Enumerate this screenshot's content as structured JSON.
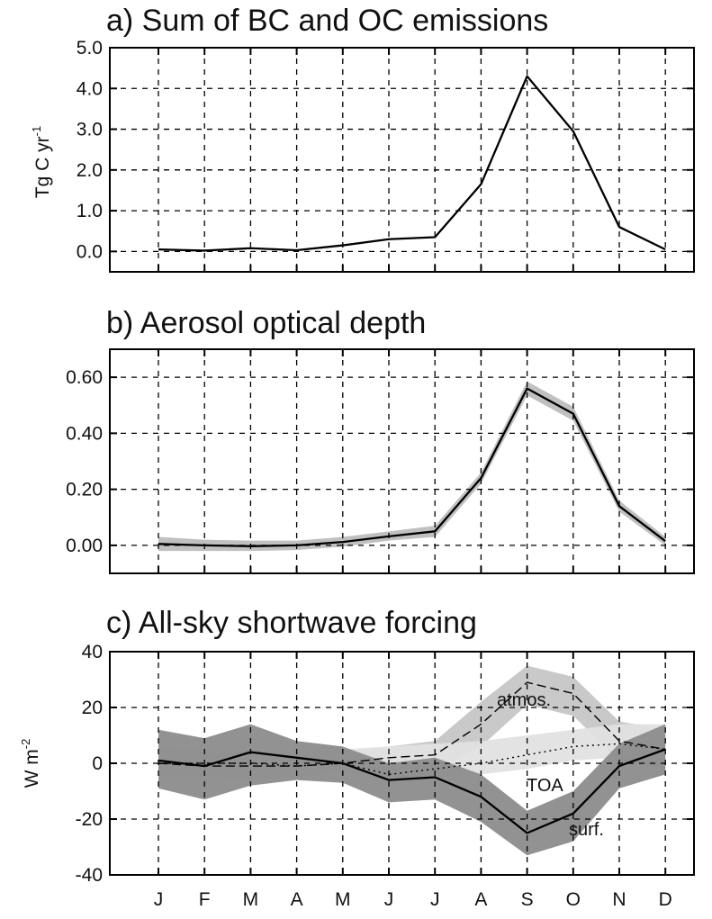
{
  "chart_data": [
    {
      "id": "a",
      "type": "line",
      "title": "a) Sum of BC and OC emissions",
      "ylabel": "Tg C yr",
      "ylabel_sup": "-1",
      "ylim": [
        -0.5,
        5.0
      ],
      "yticks": [
        0.0,
        1.0,
        2.0,
        3.0,
        4.0,
        5.0
      ],
      "ytick_labels": [
        "0.0",
        "1.0",
        "2.0",
        "3.0",
        "4.0",
        "5.0"
      ],
      "categories": [
        "J",
        "F",
        "M",
        "A",
        "M",
        "J",
        "J",
        "A",
        "S",
        "O",
        "N",
        "D"
      ],
      "series": [
        {
          "values": [
            0.05,
            0.02,
            0.08,
            0.03,
            0.15,
            0.3,
            0.35,
            1.65,
            4.3,
            2.95,
            0.6,
            0.05
          ]
        }
      ],
      "grid": true
    },
    {
      "id": "b",
      "type": "line",
      "title": "b) Aerosol optical depth",
      "ylabel": "",
      "ylim": [
        -0.1,
        0.7
      ],
      "yticks": [
        0.0,
        0.2,
        0.4,
        0.6
      ],
      "ytick_labels": [
        "0.00",
        "0.20",
        "0.40",
        "0.60"
      ],
      "categories": [
        "J",
        "F",
        "M",
        "A",
        "M",
        "J",
        "J",
        "A",
        "S",
        "O",
        "N",
        "D"
      ],
      "series": [
        {
          "values": [
            0.005,
            0.0,
            -0.003,
            0.0,
            0.012,
            0.032,
            0.05,
            0.24,
            0.56,
            0.47,
            0.14,
            0.015
          ],
          "band_low": [
            -0.02,
            -0.02,
            -0.02,
            -0.017,
            -0.005,
            0.017,
            0.03,
            0.22,
            0.535,
            0.445,
            0.12,
            0.0
          ],
          "band_high": [
            0.03,
            0.02,
            0.017,
            0.017,
            0.03,
            0.05,
            0.07,
            0.26,
            0.585,
            0.495,
            0.16,
            0.03
          ]
        }
      ],
      "grid": true
    },
    {
      "id": "c",
      "type": "line",
      "title": "c) All-sky shortwave forcing",
      "ylabel": "W m",
      "ylabel_sup": "-2",
      "ylim": [
        -40,
        40
      ],
      "yticks": [
        -40,
        -20,
        0,
        20,
        40
      ],
      "ytick_labels": [
        "-40",
        "-20",
        "0",
        "20",
        "40"
      ],
      "categories": [
        "J",
        "F",
        "M",
        "A",
        "M",
        "J",
        "J",
        "A",
        "S",
        "O",
        "N",
        "D"
      ],
      "series": [
        {
          "name": "atmos.",
          "values": [
            0,
            -1,
            -1,
            -1,
            0,
            2,
            3,
            14,
            29,
            25,
            8,
            5
          ],
          "band_low": [
            -3,
            -5,
            -5,
            -4,
            -3,
            -2,
            -2,
            6,
            21,
            17,
            1,
            -2
          ],
          "band_high": [
            6,
            5,
            4,
            3,
            4,
            6,
            8,
            22,
            35,
            31,
            15,
            12
          ],
          "band_color": "#c6c6c6",
          "line_style": "dash"
        },
        {
          "name": "TOA",
          "values": [
            0,
            0,
            0,
            -1,
            0,
            -4,
            -2,
            0,
            3,
            6,
            7,
            5
          ],
          "band_low": [
            -5,
            -5,
            -6,
            -5,
            -3,
            -6,
            -5,
            -4,
            -2,
            1,
            2,
            0
          ],
          "band_high": [
            6,
            5,
            5,
            4,
            5,
            6,
            7,
            8,
            10,
            12,
            14,
            14
          ],
          "band_color": "#e2e2e2",
          "line_style": "dot"
        },
        {
          "name": "surf.",
          "values": [
            1,
            -1,
            4,
            2,
            0,
            -6,
            -5,
            -12,
            -25,
            -18,
            -1,
            5
          ],
          "band_low": [
            -9,
            -13,
            -8,
            -6,
            -7,
            -14,
            -13,
            -21,
            -33,
            -28,
            -9,
            -4
          ],
          "band_high": [
            12,
            9,
            14,
            8,
            6,
            0,
            2,
            -4,
            -17,
            -10,
            7,
            14
          ],
          "band_color": "#8c8c8c",
          "line_style": "solid"
        }
      ],
      "annotations": [
        "atmos.",
        "TOA",
        "surf."
      ],
      "grid": true
    }
  ]
}
